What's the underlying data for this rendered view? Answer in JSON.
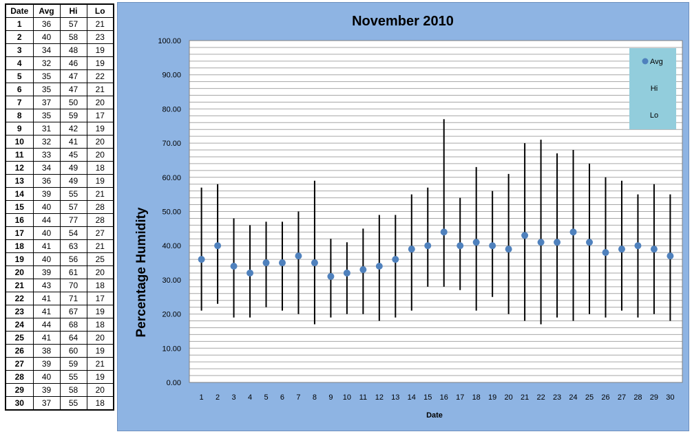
{
  "table": {
    "headers": [
      "Date",
      "Avg",
      "Hi",
      "Lo"
    ],
    "rows": [
      [
        "1",
        "36",
        "57",
        "21"
      ],
      [
        "2",
        "40",
        "58",
        "23"
      ],
      [
        "3",
        "34",
        "48",
        "19"
      ],
      [
        "4",
        "32",
        "46",
        "19"
      ],
      [
        "5",
        "35",
        "47",
        "22"
      ],
      [
        "6",
        "35",
        "47",
        "21"
      ],
      [
        "7",
        "37",
        "50",
        "20"
      ],
      [
        "8",
        "35",
        "59",
        "17"
      ],
      [
        "9",
        "31",
        "42",
        "19"
      ],
      [
        "10",
        "32",
        "41",
        "20"
      ],
      [
        "11",
        "33",
        "45",
        "20"
      ],
      [
        "12",
        "34",
        "49",
        "18"
      ],
      [
        "13",
        "36",
        "49",
        "19"
      ],
      [
        "14",
        "39",
        "55",
        "21"
      ],
      [
        "15",
        "40",
        "57",
        "28"
      ],
      [
        "16",
        "44",
        "77",
        "28"
      ],
      [
        "17",
        "40",
        "54",
        "27"
      ],
      [
        "18",
        "41",
        "63",
        "21"
      ],
      [
        "19",
        "40",
        "56",
        "25"
      ],
      [
        "20",
        "39",
        "61",
        "20"
      ],
      [
        "21",
        "43",
        "70",
        "18"
      ],
      [
        "22",
        "41",
        "71",
        "17"
      ],
      [
        "23",
        "41",
        "67",
        "19"
      ],
      [
        "24",
        "44",
        "68",
        "18"
      ],
      [
        "25",
        "41",
        "64",
        "20"
      ],
      [
        "26",
        "38",
        "60",
        "19"
      ],
      [
        "27",
        "39",
        "59",
        "21"
      ],
      [
        "28",
        "40",
        "55",
        "19"
      ],
      [
        "29",
        "39",
        "58",
        "20"
      ],
      [
        "30",
        "37",
        "55",
        "18"
      ]
    ]
  },
  "chart_data": {
    "type": "scatter",
    "title": "November 2010",
    "xlabel": "Date",
    "ylabel": "Percentage Humidity",
    "ylim": [
      0,
      100
    ],
    "y_ticks": [
      "0.00",
      "10.00",
      "20.00",
      "30.00",
      "40.00",
      "50.00",
      "60.00",
      "70.00",
      "80.00",
      "90.00",
      "100.00"
    ],
    "y_minor_step": 2,
    "grid": true,
    "legend_position": "top-right",
    "x": [
      1,
      2,
      3,
      4,
      5,
      6,
      7,
      8,
      9,
      10,
      11,
      12,
      13,
      14,
      15,
      16,
      17,
      18,
      19,
      20,
      21,
      22,
      23,
      24,
      25,
      26,
      27,
      28,
      29,
      30
    ],
    "series": [
      {
        "name": "Avg",
        "values": [
          36,
          40,
          34,
          32,
          35,
          35,
          37,
          35,
          31,
          32,
          33,
          34,
          36,
          39,
          40,
          44,
          40,
          41,
          40,
          39,
          43,
          41,
          41,
          44,
          41,
          38,
          39,
          40,
          39,
          37
        ]
      },
      {
        "name": "Hi",
        "values": [
          57,
          58,
          48,
          46,
          47,
          47,
          50,
          59,
          42,
          41,
          45,
          49,
          49,
          55,
          57,
          77,
          54,
          63,
          56,
          61,
          70,
          71,
          67,
          68,
          64,
          60,
          59,
          55,
          58,
          55
        ]
      },
      {
        "name": "Lo",
        "values": [
          21,
          23,
          19,
          19,
          22,
          21,
          20,
          17,
          19,
          20,
          20,
          18,
          19,
          21,
          28,
          28,
          27,
          21,
          25,
          20,
          18,
          17,
          19,
          18,
          20,
          19,
          21,
          19,
          20,
          18
        ]
      }
    ],
    "colors": {
      "panel_background": "#8eb4e3",
      "plot_background": "#ffffff",
      "gridline": "#a6a6a6",
      "avg_marker": "#4f81bd",
      "range_line": "#000000",
      "legend_background": "#92cddc"
    }
  }
}
